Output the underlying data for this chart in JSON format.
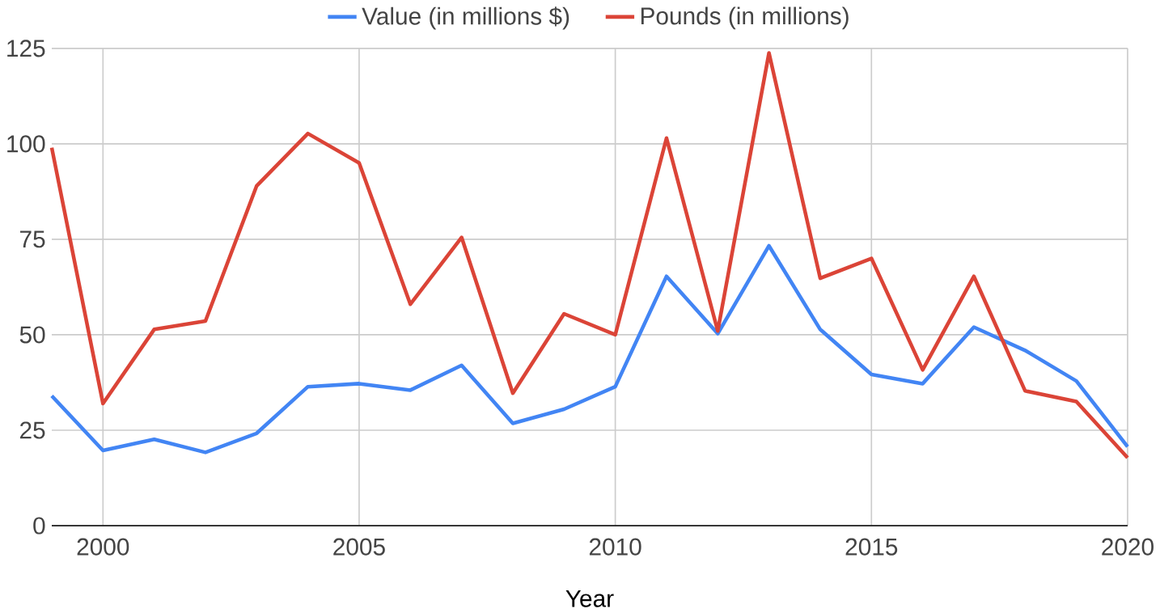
{
  "chart_data": {
    "type": "line",
    "xlabel": "Year",
    "x": [
      1999,
      2000,
      2001,
      2002,
      2003,
      2004,
      2005,
      2006,
      2007,
      2008,
      2009,
      2010,
      2011,
      2012,
      2013,
      2014,
      2015,
      2016,
      2017,
      2018,
      2019,
      2020
    ],
    "series": [
      {
        "name": "Value (in millions $)",
        "color": "#4285f4",
        "values": [
          34,
          19.7,
          22.6,
          19.2,
          24.2,
          36.4,
          37.2,
          35.5,
          42,
          26.8,
          30.5,
          36.4,
          65.3,
          50.3,
          73.3,
          51.4,
          39.6,
          37.2,
          52,
          45.9,
          37.9,
          20.7
        ]
      },
      {
        "name": "Pounds (in millions)",
        "color": "#db4437",
        "values": [
          99,
          32,
          51.4,
          53.6,
          89,
          102.7,
          95,
          58,
          75.5,
          34.7,
          55.5,
          50,
          101.5,
          51,
          123.8,
          64.8,
          70,
          40.8,
          65.3,
          35.3,
          32.5,
          17.8
        ]
      }
    ],
    "xlim": [
      1999,
      2020
    ],
    "ylim": [
      0,
      125
    ],
    "xticks": [
      2000,
      2005,
      2010,
      2015,
      2020
    ],
    "yticks": [
      0,
      25,
      50,
      75,
      100,
      125
    ],
    "grid": true,
    "legend": "top",
    "marker": "none",
    "line_style": "solid"
  }
}
